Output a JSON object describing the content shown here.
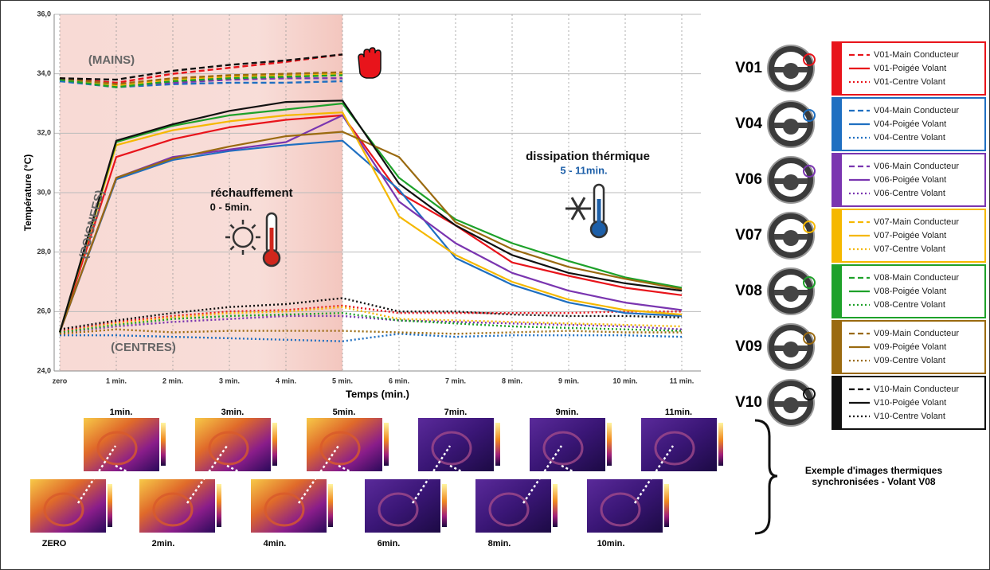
{
  "chart_data": {
    "type": "line",
    "categories": [
      "zero",
      "1 min.",
      "2 min.",
      "3 min.",
      "4 min.",
      "5 min.",
      "6 min.",
      "7 min.",
      "8 min.",
      "9 min.",
      "10 min.",
      "11 min."
    ],
    "x_label": "Temps (min.)",
    "y_label": "Température (°C)",
    "ylim": [
      24,
      36
    ],
    "yticks": [
      {
        "value": 24,
        "label": "24,0"
      },
      {
        "value": 26,
        "label": "26,0"
      },
      {
        "value": 28,
        "label": "28,0"
      },
      {
        "value": 30,
        "label": "30,0"
      },
      {
        "value": 32,
        "label": "32,0"
      },
      {
        "value": 34,
        "label": "34,0"
      },
      {
        "value": 36,
        "label": "36,0"
      }
    ],
    "grid": true,
    "vehicles": [
      "V01",
      "V04",
      "V06",
      "V07",
      "V08",
      "V09",
      "V10"
    ],
    "annotations": [
      "(MAINS)",
      "(POIGNEES)",
      "(CENTRES)",
      "réchauffement",
      "0 - 5min.",
      "dissipation thérmique",
      "5 - 11min."
    ],
    "series": [
      {
        "name": "V01-Main Conducteur",
        "color": "#e8141b",
        "dash": "dashed",
        "values": [
          33.85,
          33.7,
          34.0,
          34.2,
          34.4,
          34.65,
          null,
          null,
          null,
          null,
          null,
          null
        ]
      },
      {
        "name": "V01-Poigée Volant",
        "color": "#e8141b",
        "dash": "solid",
        "values": [
          25.3,
          31.2,
          31.8,
          32.2,
          32.45,
          32.6,
          30.0,
          28.9,
          27.65,
          27.2,
          26.8,
          26.55
        ]
      },
      {
        "name": "V01-Centre Volant",
        "color": "#e8141b",
        "dash": "dotted",
        "values": [
          25.35,
          25.65,
          25.85,
          26.0,
          26.05,
          26.2,
          25.95,
          25.95,
          25.95,
          25.95,
          26.0,
          26.0
        ]
      },
      {
        "name": "V04-Main Conducteur",
        "color": "#1f6fc1",
        "dash": "dashed",
        "values": [
          33.75,
          33.55,
          33.65,
          33.7,
          33.7,
          33.75,
          null,
          null,
          null,
          null,
          null,
          null
        ]
      },
      {
        "name": "V04-Poigée Volant",
        "color": "#1f6fc1",
        "dash": "solid",
        "values": [
          25.3,
          30.45,
          31.1,
          31.4,
          31.6,
          31.75,
          30.1,
          27.8,
          26.9,
          26.3,
          25.95,
          25.85
        ]
      },
      {
        "name": "V04-Centre Volant",
        "color": "#1f6fc1",
        "dash": "dotted",
        "values": [
          25.2,
          25.2,
          25.15,
          25.1,
          25.05,
          25.0,
          25.25,
          25.15,
          25.2,
          25.2,
          25.2,
          25.15
        ]
      },
      {
        "name": "V06-Main Conducteur",
        "color": "#7a35b0",
        "dash": "dashed",
        "values": [
          33.8,
          33.6,
          33.7,
          33.8,
          33.85,
          33.85,
          null,
          null,
          null,
          null,
          null,
          null
        ]
      },
      {
        "name": "V06-Poigée Volant",
        "color": "#7a35b0",
        "dash": "solid",
        "values": [
          25.3,
          30.5,
          31.2,
          31.45,
          31.7,
          32.6,
          29.7,
          28.3,
          27.3,
          26.7,
          26.3,
          26.05
        ]
      },
      {
        "name": "V06-Centre Volant",
        "color": "#7a35b0",
        "dash": "dotted",
        "values": [
          25.3,
          25.5,
          25.65,
          25.75,
          25.85,
          25.85,
          25.7,
          25.65,
          25.6,
          25.55,
          25.5,
          25.4
        ]
      },
      {
        "name": "V07-Main Conducteur",
        "color": "#f5b800",
        "dash": "dashed",
        "values": [
          33.85,
          33.6,
          33.8,
          33.9,
          33.95,
          34.0,
          null,
          null,
          null,
          null,
          null,
          null
        ]
      },
      {
        "name": "V07-Poigée Volant",
        "color": "#f5b800",
        "dash": "solid",
        "values": [
          25.3,
          31.6,
          32.1,
          32.4,
          32.6,
          32.7,
          29.2,
          27.9,
          27.0,
          26.4,
          26.05,
          25.9
        ]
      },
      {
        "name": "V07-Centre Volant",
        "color": "#f5b800",
        "dash": "dotted",
        "values": [
          25.3,
          25.6,
          25.8,
          25.95,
          26.0,
          26.15,
          25.75,
          25.7,
          25.65,
          25.6,
          25.55,
          25.5
        ]
      },
      {
        "name": "V08-Main Conducteur",
        "color": "#1ea12a",
        "dash": "dashed",
        "values": [
          33.8,
          33.55,
          33.75,
          33.85,
          33.9,
          33.95,
          null,
          null,
          null,
          null,
          null,
          null
        ]
      },
      {
        "name": "V08-Poigée Volant",
        "color": "#1ea12a",
        "dash": "solid",
        "values": [
          25.3,
          31.7,
          32.25,
          32.6,
          32.8,
          33.0,
          30.5,
          29.1,
          28.3,
          27.7,
          27.15,
          26.8
        ]
      },
      {
        "name": "V08-Centre Volant",
        "color": "#1ea12a",
        "dash": "dotted",
        "values": [
          25.3,
          25.55,
          25.75,
          25.85,
          25.9,
          25.95,
          25.7,
          25.6,
          25.5,
          25.45,
          25.4,
          25.35
        ]
      },
      {
        "name": "V09-Main Conducteur",
        "color": "#9a6a10",
        "dash": "dashed",
        "values": [
          33.85,
          33.65,
          33.85,
          33.95,
          34.0,
          34.05,
          null,
          null,
          null,
          null,
          null,
          null
        ]
      },
      {
        "name": "V09-Poigée Volant",
        "color": "#9a6a10",
        "dash": "solid",
        "values": [
          25.3,
          30.5,
          31.15,
          31.55,
          31.9,
          32.05,
          31.2,
          29.0,
          28.1,
          27.5,
          27.1,
          26.75
        ]
      },
      {
        "name": "V09-Centre Volant",
        "color": "#9a6a10",
        "dash": "dotted",
        "values": [
          25.25,
          25.4,
          25.3,
          25.35,
          25.35,
          25.35,
          25.3,
          25.25,
          25.3,
          25.35,
          25.3,
          25.3
        ]
      },
      {
        "name": "V10-Main Conducteur",
        "color": "#111111",
        "dash": "dashed",
        "values": [
          33.85,
          33.8,
          34.1,
          34.3,
          34.45,
          34.65,
          null,
          null,
          null,
          null,
          null,
          null
        ]
      },
      {
        "name": "V10-Poigée Volant",
        "color": "#111111",
        "dash": "solid",
        "values": [
          25.3,
          31.75,
          32.3,
          32.75,
          33.05,
          33.1,
          30.3,
          28.9,
          27.9,
          27.3,
          26.95,
          26.7
        ]
      },
      {
        "name": "V10-Centre Volant",
        "color": "#111111",
        "dash": "dotted",
        "values": [
          25.4,
          25.7,
          25.95,
          26.15,
          26.25,
          26.45,
          26.0,
          26.0,
          25.9,
          25.85,
          25.85,
          25.8
        ]
      }
    ]
  },
  "thermal_images": {
    "top": [
      "1min.",
      "3min.",
      "5min.",
      "7min.",
      "9min.",
      "11min."
    ],
    "bottom": [
      "ZERO",
      "2min.",
      "4min.",
      "6min.",
      "8min.",
      "10min."
    ],
    "caption": [
      "Exemple d'images thermiques",
      "synchronisées - Volant V08"
    ]
  }
}
